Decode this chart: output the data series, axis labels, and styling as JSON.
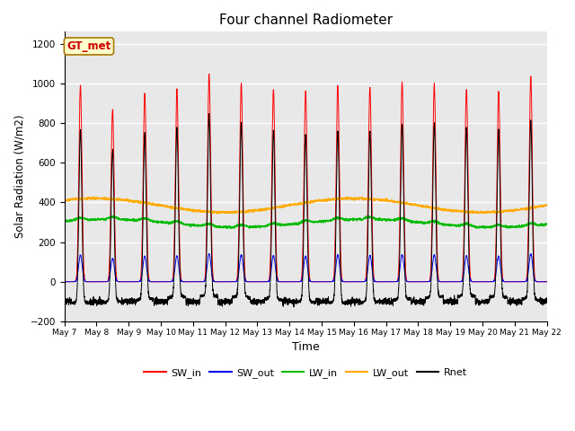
{
  "title": "Four channel Radiometer",
  "xlabel": "Time",
  "ylabel": "Solar Radiation (W/m2)",
  "ylim": [
    -200,
    1260
  ],
  "yticks": [
    -200,
    0,
    200,
    400,
    600,
    800,
    1000,
    1200
  ],
  "num_days": 15,
  "start_day": 7,
  "end_day": 22,
  "colors": {
    "SW_in": "#ff0000",
    "SW_out": "#0000ee",
    "LW_in": "#00bb00",
    "LW_out": "#ffaa00",
    "Rnet": "#000000"
  },
  "legend_labels": [
    "SW_in",
    "SW_out",
    "LW_in",
    "LW_out",
    "Rnet"
  ],
  "annotation_text": "GT_met",
  "annotation_bg": "#ffffcc",
  "annotation_border": "#aa7700",
  "annotation_text_color": "#cc0000",
  "plot_bg": "#e8e8e8",
  "points_per_day": 288,
  "SW_in_peaks": [
    990,
    870,
    950,
    970,
    1045,
    1000,
    970,
    960,
    990,
    980,
    1005,
    995,
    970,
    960,
    1035
  ],
  "LW_in_base": 295,
  "LW_out_base": 385,
  "Rnet_night": -100
}
